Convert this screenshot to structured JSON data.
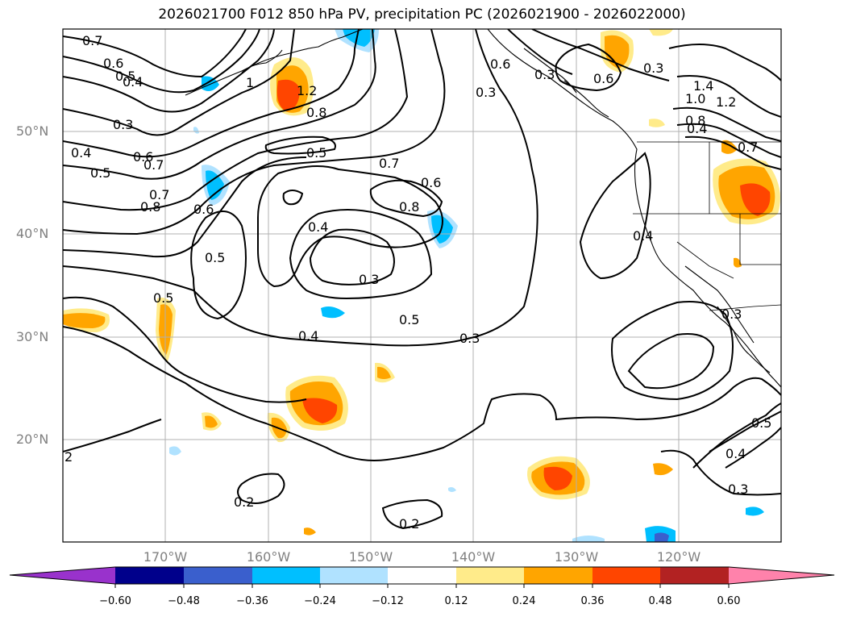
{
  "title": "2026021700 F012 850 hPa PV, precipitation PC (2026021900 - 2026022000)",
  "map": {
    "longitude_labels": [
      "170°W",
      "160°W",
      "150°W",
      "140°W",
      "130°W",
      "120°W"
    ],
    "latitude_labels": [
      "50°N",
      "40°N",
      "30°N",
      "20°N"
    ],
    "contour_labels": [
      "0.7",
      "0.6",
      "0.5",
      "0.4",
      "1",
      "1.2",
      "0.8",
      "0.6",
      "0.3",
      "0.6",
      "0.3",
      "1.0",
      "1.4",
      "1.2",
      "0.8",
      "0.4",
      "0.7",
      "0.3",
      "0.4",
      "0.5",
      "0.6",
      "0.7",
      "0.8",
      "0.7",
      "0.6",
      "0.5",
      "0.7",
      "0.8",
      "0.6",
      "0.4",
      "0.5",
      "0.3",
      "0.5",
      "0.4",
      "0.3",
      "0.4",
      "0.3",
      "0.2",
      "0.2",
      "2",
      "0.5",
      "0.4",
      "0.3",
      "0.5",
      "0.3"
    ]
  },
  "colorbar": {
    "ticks": [
      "−0.60",
      "−0.48",
      "−0.36",
      "−0.24",
      "−0.12",
      "0.12",
      "0.24",
      "0.36",
      "0.48",
      "0.60"
    ],
    "colors": [
      "#9932cc",
      "#00008b",
      "#3a5fcd",
      "#00bfff",
      "#b0e2ff",
      "#ffffff",
      "#ffeb8a",
      "#ffa500",
      "#ff4500",
      "#b22222",
      "#ff82ab"
    ]
  }
}
